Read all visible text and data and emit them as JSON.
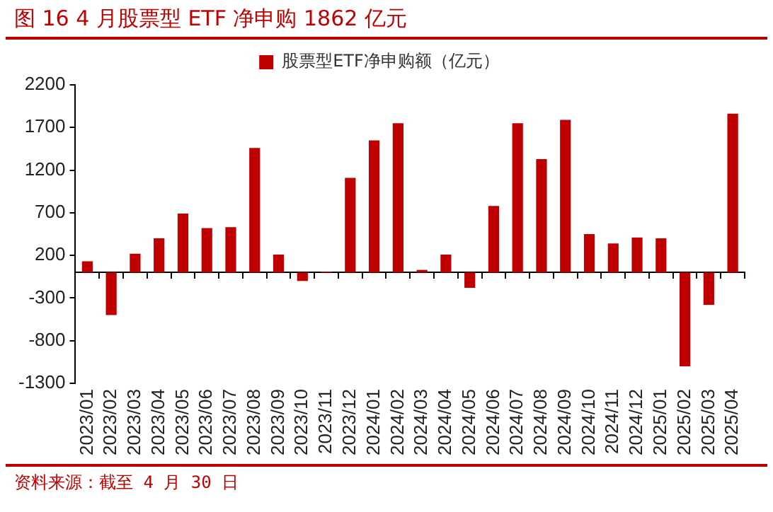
{
  "chart_data": {
    "type": "bar",
    "title": "图 16 4 月股票型 ETF 净申购 1862 亿元",
    "categories": [
      "2023/01",
      "2023/02",
      "2023/03",
      "2023/04",
      "2023/05",
      "2023/06",
      "2023/07",
      "2023/08",
      "2023/09",
      "2023/10",
      "2023/11",
      "2023/12",
      "2024/01",
      "2024/02",
      "2024/03",
      "2024/04",
      "2024/05",
      "2024/06",
      "2024/07",
      "2024/08",
      "2024/09",
      "2024/10",
      "2024/11",
      "2024/12",
      "2025/01",
      "2025/02",
      "2025/03",
      "2025/04"
    ],
    "series": [
      {
        "name": "股票型ETF净申购额（亿元）",
        "color": "#c00000",
        "values": [
          130,
          -500,
          220,
          400,
          690,
          520,
          530,
          1460,
          210,
          -100,
          10,
          1110,
          1550,
          1750,
          30,
          210,
          -180,
          780,
          1750,
          1330,
          1790,
          450,
          340,
          410,
          400,
          -1100,
          -380,
          1862
        ]
      }
    ],
    "ylim": [
      -1300,
      2200
    ],
    "yticks": [
      -1300,
      -800,
      -300,
      200,
      700,
      1200,
      1700,
      2200
    ],
    "grid": false,
    "legend": "top",
    "annotations": [
      "资料来源：截至 4 月 30 日"
    ]
  }
}
